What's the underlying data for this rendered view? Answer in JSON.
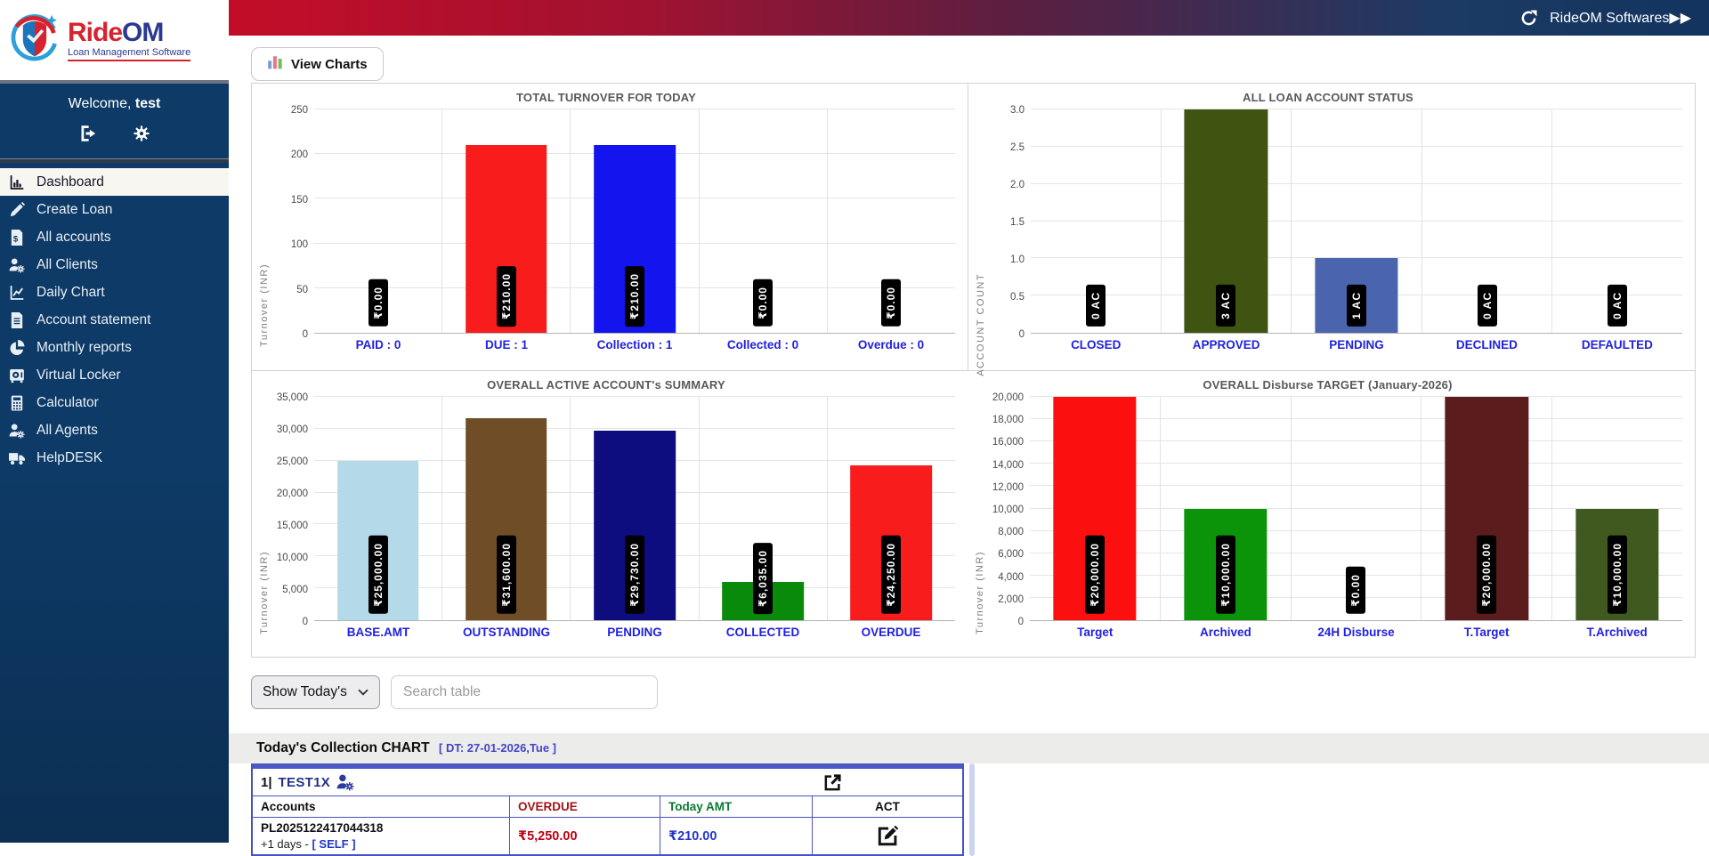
{
  "topbar": {
    "brand": "RideOM Softwares▶▶",
    "refresh_icon": "refresh-icon"
  },
  "sidebar": {
    "logo": {
      "title_ride": "Ride",
      "title_om": "OM",
      "tagline": "Loan Management Software"
    },
    "welcome_prefix": "Welcome, ",
    "welcome_user": "test",
    "icons": [
      "logout-icon",
      "gear-icon"
    ],
    "items": [
      {
        "label": "Dashboard",
        "icon": "bar-chart",
        "active": true
      },
      {
        "label": "Create Loan",
        "icon": "pencil",
        "active": false
      },
      {
        "label": "All accounts",
        "icon": "file-dollar",
        "active": false
      },
      {
        "label": "All Clients",
        "icon": "user-gear",
        "active": false
      },
      {
        "label": "Daily Chart",
        "icon": "daily-chart",
        "active": false
      },
      {
        "label": "Account statement",
        "icon": "file-lines",
        "active": false
      },
      {
        "label": "Monthly reports",
        "icon": "pie",
        "active": false
      },
      {
        "label": "Virtual Locker",
        "icon": "locker",
        "active": false
      },
      {
        "label": "Calculator",
        "icon": "calculator",
        "active": false
      },
      {
        "label": "All Agents",
        "icon": "user-gear",
        "active": false
      },
      {
        "label": "HelpDESK",
        "icon": "truck",
        "active": false
      }
    ]
  },
  "toolbar": {
    "view_charts_label": "View Charts"
  },
  "controls": {
    "chart_select_value": "Show Today's Cha",
    "search_placeholder": "Search table"
  },
  "collection": {
    "heading": "Today's Collection CHART",
    "heading_date": "[ DT: 27-01-2026,Tue ]",
    "table": {
      "row_number": "1|",
      "client_name": "TEST1X",
      "columns": {
        "accounts": "Accounts",
        "overdue": "OVERDUE",
        "today": "Today AMT",
        "act": "ACT"
      },
      "rows": [
        {
          "account_id": "PL2025122417044318",
          "account_sub": "+1 days - ",
          "account_tag": "[ SELF ]",
          "overdue": "₹5,250.00",
          "today_amt": "₹210.00"
        }
      ]
    }
  },
  "accent_colors": {
    "table_border": "#4753c0",
    "category_label": "#2121e0",
    "topbar_red": "#c30d28",
    "topbar_navy": "#12345e",
    "sidebar_navy": "#0d3a66"
  },
  "chart_data": [
    {
      "type": "bar",
      "title": "TOTAL TURNOVER FOR TODAY",
      "ylabel": "Turnover (INR)",
      "ylim": [
        0,
        250
      ],
      "yticks": [
        [
          0,
          "0"
        ],
        [
          50,
          "50"
        ],
        [
          100,
          "100"
        ],
        [
          150,
          "150"
        ],
        [
          200,
          "200"
        ],
        [
          250,
          "250"
        ]
      ],
      "grid": true,
      "categories": [
        "PAID : 0",
        "DUE : 1",
        "Collection : 1",
        "Collected : 0",
        "Overdue : 0"
      ],
      "values": [
        0,
        210,
        210,
        0,
        0
      ],
      "bar_labels": [
        "₹0.00",
        "₹210.00",
        "₹210.00",
        "₹0.00",
        "₹0.00"
      ],
      "bar_colors": [
        "#cccccc",
        "#f91c1c",
        "#1414ef",
        "#cccccc",
        "#cccccc"
      ]
    },
    {
      "type": "bar",
      "title": "ALL LOAN ACCOUNT STATUS",
      "ylabel": "ACCOUNT COUNT",
      "ylim": [
        0,
        3
      ],
      "yticks": [
        [
          0,
          "0"
        ],
        [
          0.5,
          "0.5"
        ],
        [
          1,
          "1.0"
        ],
        [
          1.5,
          "1.5"
        ],
        [
          2,
          "2.0"
        ],
        [
          2.5,
          "2.5"
        ],
        [
          3,
          "3.0"
        ]
      ],
      "grid": true,
      "categories": [
        "CLOSED",
        "APPROVED",
        "PENDING",
        "DECLINED",
        "DEFAULTED"
      ],
      "values": [
        0,
        3,
        1,
        0,
        0
      ],
      "bar_labels": [
        "0 AC",
        "3 AC",
        "1 AC",
        "0 AC",
        "0 AC"
      ],
      "bar_colors": [
        "#cccccc",
        "#3e5410",
        "#4a64ae",
        "#cccccc",
        "#cccccc"
      ]
    },
    {
      "type": "bar",
      "title": "OVERALL ACTIVE ACCOUNT's SUMMARY",
      "ylabel": "Turnover (INR)",
      "ylim": [
        0,
        35000
      ],
      "yticks": [
        [
          0,
          "0"
        ],
        [
          5000,
          "5,000"
        ],
        [
          10000,
          "10,000"
        ],
        [
          15000,
          "15,000"
        ],
        [
          20000,
          "20,000"
        ],
        [
          25000,
          "25,000"
        ],
        [
          30000,
          "30,000"
        ],
        [
          35000,
          "35,000"
        ]
      ],
      "grid": true,
      "categories": [
        "BASE.AMT",
        "OUTSTANDING",
        "PENDING",
        "COLLECTED",
        "OVERDUE"
      ],
      "values": [
        25000,
        31600,
        29730,
        6035,
        24250
      ],
      "bar_labels": [
        "₹25,000.00",
        "₹31,600.00",
        "₹29,730.00",
        "₹6,035.00",
        "₹24,250.00"
      ],
      "bar_colors": [
        "#b4d9e8",
        "#6f4e27",
        "#0d0d80",
        "#0a8a0a",
        "#f91c1c"
      ]
    },
    {
      "type": "bar",
      "title": "OVERALL Disburse TARGET (January-2026)",
      "ylabel": "Turnover (INR)",
      "ylim": [
        0,
        20000
      ],
      "yticks": [
        [
          0,
          "0"
        ],
        [
          2000,
          "2,000"
        ],
        [
          4000,
          "4,000"
        ],
        [
          6000,
          "6,000"
        ],
        [
          8000,
          "8,000"
        ],
        [
          10000,
          "10,000"
        ],
        [
          12000,
          "12,000"
        ],
        [
          14000,
          "14,000"
        ],
        [
          16000,
          "16,000"
        ],
        [
          18000,
          "18,000"
        ],
        [
          20000,
          "20,000"
        ]
      ],
      "grid": true,
      "categories": [
        "Target",
        "Archived",
        "24H Disburse",
        "T.Target",
        "T.Archived"
      ],
      "values": [
        20000,
        10000,
        0,
        20000,
        10000
      ],
      "bar_labels": [
        "₹20,000.00",
        "₹10,000.00",
        "₹0.00",
        "₹20,000.00",
        "₹10,000.00"
      ],
      "bar_colors": [
        "#fb0f0f",
        "#0b9409",
        "#cccccc",
        "#5a1c1c",
        "#40591f"
      ]
    }
  ]
}
